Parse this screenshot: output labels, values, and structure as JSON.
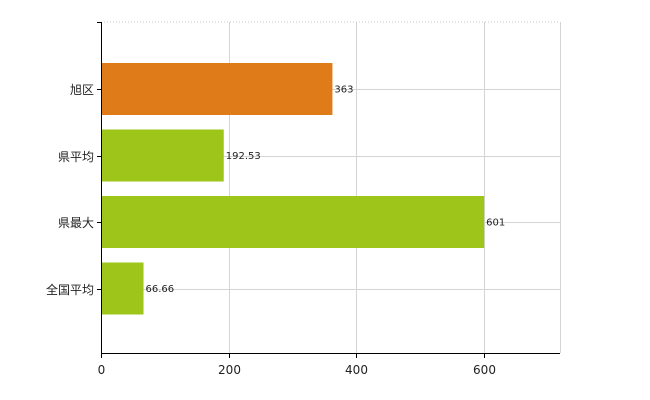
{
  "chart_data": {
    "type": "bar",
    "orientation": "horizontal",
    "categories": [
      "旭区",
      "県平均",
      "県最大",
      "全国平均"
    ],
    "values": [
      363,
      192.53,
      601,
      66.66
    ],
    "value_labels": [
      "363",
      "192.53",
      "601",
      "66.66"
    ],
    "bar_colors": [
      "#e07b1a",
      "#9ec51a",
      "#9ec51a",
      "#9ec51a"
    ],
    "xlim": [
      0,
      720
    ],
    "x_ticks": [
      0,
      200,
      400,
      600
    ],
    "x_tick_labels": [
      "0",
      "200",
      "400",
      "600"
    ],
    "grid": true,
    "title": "",
    "xlabel": "",
    "ylabel": ""
  }
}
